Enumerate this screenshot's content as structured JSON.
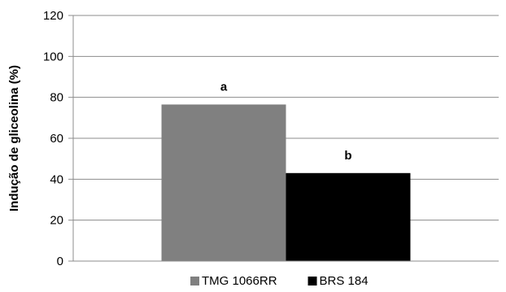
{
  "chart_data": {
    "type": "bar",
    "title": "",
    "xlabel": "",
    "ylabel": "Indução de gliceolina (%)",
    "ylim": [
      0,
      120
    ],
    "yticks": [
      0,
      20,
      40,
      60,
      80,
      100,
      120
    ],
    "grid": true,
    "legend_position": "bottom",
    "series": [
      {
        "name": "TMG 1066RR",
        "value": 76.5,
        "label": "a",
        "color": "#808080"
      },
      {
        "name": "BRS 184",
        "value": 43,
        "label": "b",
        "color": "#000000"
      }
    ]
  }
}
